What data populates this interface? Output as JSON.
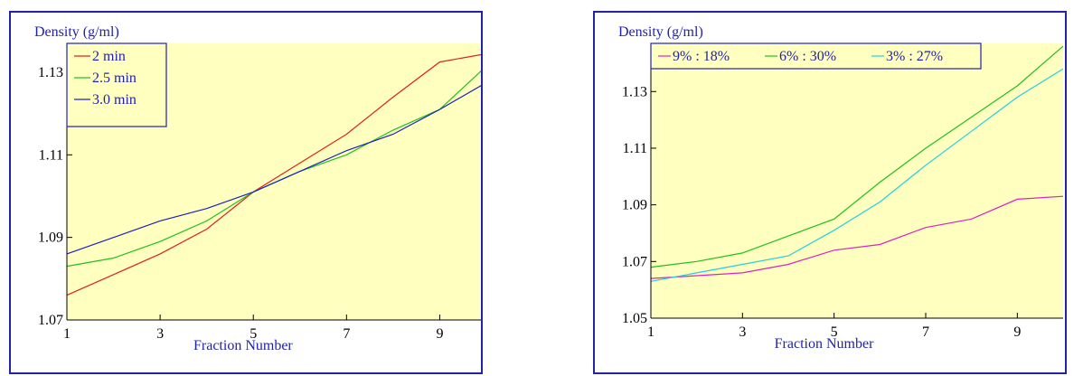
{
  "chart_data": [
    {
      "type": "line",
      "title": "",
      "ylabel": "Density (g/ml)",
      "xlabel": "Fraction Number",
      "xlim": [
        1,
        10
      ],
      "ylim": [
        1.07,
        1.137
      ],
      "xticks": [
        1,
        3,
        5,
        7,
        9
      ],
      "xtick_labels": [
        "1",
        "3",
        "5",
        "7",
        "9"
      ],
      "yticks": [
        1.07,
        1.09,
        1.11,
        1.13
      ],
      "ytick_labels": [
        "1.07",
        "1.09",
        "1.11",
        "1.13"
      ],
      "grid": false,
      "legend": "top-left",
      "x": [
        1,
        2,
        3,
        4,
        5,
        6,
        7,
        8,
        9,
        10
      ],
      "series": [
        {
          "name": "2 min",
          "color": "#e02020",
          "values": [
            1.076,
            1.081,
            1.086,
            1.092,
            1.101,
            1.108,
            1.115,
            1.124,
            1.1325,
            1.1345
          ]
        },
        {
          "name": "2.5 min",
          "color": "#20c020",
          "values": [
            1.083,
            1.085,
            1.089,
            1.094,
            1.101,
            1.106,
            1.11,
            1.116,
            1.121,
            1.1315
          ]
        },
        {
          "name": "3.0 min",
          "color": "#2020c0",
          "values": [
            1.086,
            1.09,
            1.094,
            1.097,
            1.101,
            1.106,
            1.111,
            1.115,
            1.121,
            1.1275
          ]
        }
      ]
    },
    {
      "type": "line",
      "title": "",
      "ylabel": "Density (g/ml)",
      "xlabel": "Fraction Number",
      "xlim": [
        1,
        10
      ],
      "ylim": [
        1.05,
        1.147
      ],
      "xticks": [
        1,
        3,
        5,
        7,
        9
      ],
      "xtick_labels": [
        "1",
        "3",
        "5",
        "7",
        "9"
      ],
      "yticks": [
        1.05,
        1.07,
        1.09,
        1.11,
        1.13
      ],
      "ytick_labels": [
        "1.05",
        "1.07",
        "1.09",
        "1.11",
        "1.13"
      ],
      "grid": false,
      "legend": "top-left",
      "x": [
        1,
        2,
        3,
        4,
        5,
        6,
        7,
        8,
        9,
        10
      ],
      "series": [
        {
          "name": "9% : 18%",
          "color": "#e020c0",
          "values": [
            1.064,
            1.065,
            1.066,
            1.069,
            1.074,
            1.076,
            1.082,
            1.085,
            1.092,
            1.093
          ]
        },
        {
          "name": "6% : 30%",
          "color": "#20c020",
          "values": [
            1.068,
            1.07,
            1.073,
            1.079,
            1.085,
            1.098,
            1.11,
            1.121,
            1.132,
            1.146
          ]
        },
        {
          "name": "3% : 27%",
          "color": "#20d0e0",
          "values": [
            1.063,
            1.066,
            1.069,
            1.072,
            1.081,
            1.091,
            1.104,
            1.116,
            1.128,
            1.138
          ]
        }
      ]
    }
  ],
  "colors": {
    "plot_bg": "#ffffc0",
    "frame": "#2222aa",
    "axis_text": "#2222aa",
    "tick_text": "#000000"
  }
}
